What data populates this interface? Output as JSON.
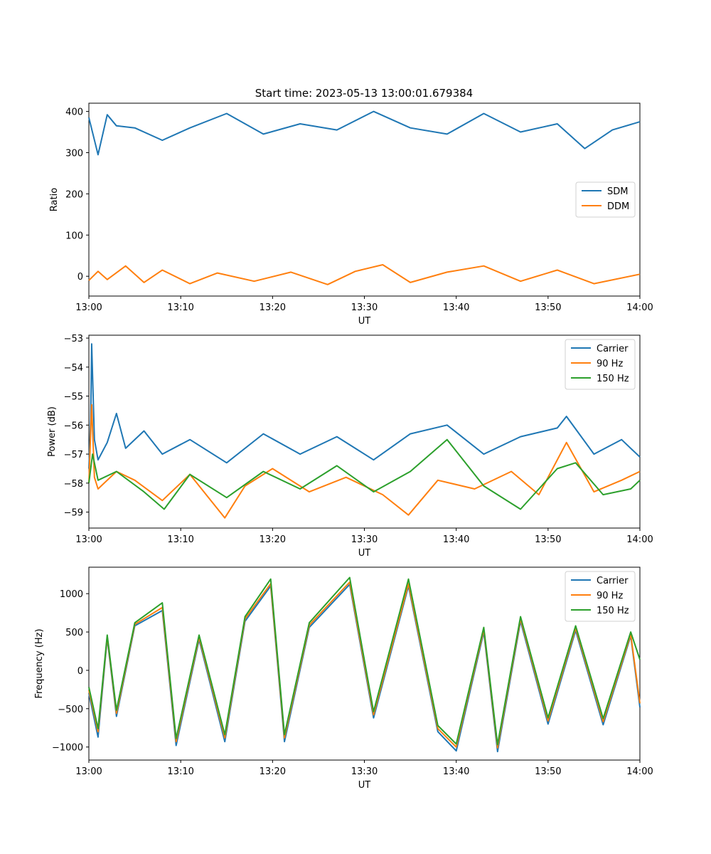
{
  "figure": {
    "title": "Start time: 2023-05-13 13:00:01.679384"
  },
  "chart_data": [
    {
      "type": "line",
      "xlabel": "UT",
      "ylabel": "Ratio",
      "xlim": [
        "13:00",
        "14:00"
      ],
      "ylim": [
        -48,
        420
      ],
      "x_ticks": [
        "13:00",
        "13:10",
        "13:20",
        "13:30",
        "13:40",
        "13:50",
        "14:00"
      ],
      "y_ticks": [
        0,
        100,
        200,
        300,
        400
      ],
      "y_tick_labels": [
        "0",
        "100",
        "200",
        "300",
        "400"
      ],
      "grid": false,
      "legend_placement": "center-right",
      "series": [
        {
          "name": "SDM",
          "color": "#1f77b4",
          "x": [
            "13:00",
            "13:01",
            "13:02",
            "13:03",
            "13:05",
            "13:08",
            "13:11",
            "13:15",
            "13:19",
            "13:23",
            "13:27",
            "13:31",
            "13:35",
            "13:39",
            "13:43",
            "13:47",
            "13:51",
            "13:54",
            "13:57",
            "14:00"
          ],
          "values": [
            385,
            295,
            392,
            365,
            360,
            330,
            360,
            395,
            345,
            370,
            355,
            400,
            360,
            345,
            395,
            350,
            370,
            310,
            355,
            375
          ]
        },
        {
          "name": "DDM",
          "color": "#ff7f0e",
          "x": [
            "13:00",
            "13:01",
            "13:02",
            "13:04",
            "13:06",
            "13:08",
            "13:11",
            "13:14",
            "13:18",
            "13:22",
            "13:26",
            "13:29",
            "13:32",
            "13:35",
            "13:39",
            "13:43",
            "13:47",
            "13:51",
            "13:55",
            "14:00"
          ],
          "values": [
            -10,
            12,
            -8,
            25,
            -15,
            15,
            -18,
            8,
            -12,
            10,
            -20,
            12,
            28,
            -15,
            10,
            25,
            -12,
            15,
            -18,
            5
          ]
        }
      ]
    },
    {
      "type": "line",
      "xlabel": "UT",
      "ylabel": "Power (dB)",
      "xlim": [
        "13:00",
        "14:00"
      ],
      "ylim": [
        -59.55,
        -52.9
      ],
      "x_ticks": [
        "13:00",
        "13:10",
        "13:20",
        "13:30",
        "13:40",
        "13:50",
        "14:00"
      ],
      "y_ticks": [
        -59,
        -58,
        -57,
        -56,
        -55,
        -54,
        -53
      ],
      "y_tick_labels": [
        "−59",
        "−58",
        "−57",
        "−56",
        "−55",
        "−54",
        "−53"
      ],
      "grid": false,
      "legend_placement": "top-right",
      "series": [
        {
          "name": "Carrier",
          "color": "#1f77b4",
          "x": [
            "13:00",
            "13:0.2",
            "13:0.3",
            "13:0.6",
            "13:1",
            "13:2",
            "13:3",
            "13:4",
            "13:6",
            "13:8",
            "13:11",
            "13:15",
            "13:19",
            "13:23",
            "13:27",
            "13:31",
            "13:35",
            "13:39",
            "13:43",
            "13:47",
            "13:51",
            "13:52",
            "13:55",
            "13:58",
            "14:00"
          ],
          "values": [
            -57.5,
            -55.8,
            -53.2,
            -56.5,
            -57.2,
            -56.6,
            -55.6,
            -56.8,
            -56.2,
            -57.0,
            -56.5,
            -57.3,
            -56.3,
            -57.0,
            -56.4,
            -57.2,
            -56.3,
            -56.0,
            -57.0,
            -56.4,
            -56.1,
            -55.7,
            -57.0,
            -56.5,
            -57.1
          ]
        },
        {
          "name": "90 Hz",
          "color": "#ff7f0e",
          "x": [
            "13:00",
            "13:0.3",
            "13:0.6",
            "13:1",
            "13:3",
            "13:5",
            "13:8",
            "13:11",
            "13:14.8",
            "13:17",
            "13:20",
            "13:24",
            "13:28",
            "13:32",
            "13:34.8",
            "13:38",
            "13:42",
            "13:46",
            "13:49",
            "13:52",
            "13:55",
            "13:58",
            "14:00"
          ],
          "values": [
            -58.0,
            -55.3,
            -57.8,
            -58.2,
            -57.6,
            -57.9,
            -58.6,
            -57.7,
            -59.2,
            -58.1,
            -57.5,
            -58.3,
            -57.8,
            -58.4,
            -59.1,
            -57.9,
            -58.2,
            -57.6,
            -58.4,
            -56.6,
            -58.3,
            -57.9,
            -57.6
          ]
        },
        {
          "name": "150 Hz",
          "color": "#2ca02c",
          "x": [
            "13:00",
            "13:0.4",
            "13:1",
            "13:3",
            "13:6",
            "13:8.2",
            "13:11",
            "13:15",
            "13:19",
            "13:23",
            "13:27",
            "13:31",
            "13:35",
            "13:39",
            "13:43",
            "13:47",
            "13:51",
            "13:53",
            "13:56",
            "13:59",
            "14:00"
          ],
          "values": [
            -58.0,
            -57.0,
            -57.9,
            -57.6,
            -58.3,
            -58.9,
            -57.7,
            -58.5,
            -57.6,
            -58.2,
            -57.4,
            -58.3,
            -57.6,
            -56.5,
            -58.1,
            -58.9,
            -57.5,
            -57.3,
            -58.4,
            -58.2,
            -57.9
          ]
        }
      ]
    },
    {
      "type": "line",
      "xlabel": "UT",
      "ylabel": "Frequency (Hz)",
      "xlim": [
        "13:00",
        "14:00"
      ],
      "ylim": [
        -1170,
        1345
      ],
      "x_ticks": [
        "13:00",
        "13:10",
        "13:20",
        "13:30",
        "13:40",
        "13:50",
        "14:00"
      ],
      "y_ticks": [
        -1000,
        -500,
        0,
        500,
        1000
      ],
      "y_tick_labels": [
        "−1000",
        "−500",
        "0",
        "500",
        "1000"
      ],
      "grid": false,
      "legend_placement": "top-right",
      "series": [
        {
          "name": "Carrier",
          "color": "#1f77b4",
          "x": [
            "13:00",
            "13:1",
            "13:2",
            "13:3",
            "13:5",
            "13:8",
            "13:9.5",
            "13:12",
            "13:14.8",
            "13:17",
            "13:19.8",
            "13:21.3",
            "13:24",
            "13:28.4",
            "13:31",
            "13:34.8",
            "13:38",
            "13:40",
            "13:43",
            "13:44.5",
            "13:47",
            "13:50",
            "13:53",
            "13:56",
            "13:59",
            "14:00"
          ],
          "values": [
            -300,
            -870,
            420,
            -600,
            580,
            780,
            -980,
            400,
            -930,
            640,
            1100,
            -930,
            560,
            1120,
            -620,
            1100,
            -800,
            -1050,
            500,
            -1060,
            640,
            -700,
            520,
            -710,
            450,
            -480
          ]
        },
        {
          "name": "90 Hz",
          "color": "#ff7f0e",
          "x": [
            "13:00",
            "13:1",
            "13:2",
            "13:3",
            "13:5",
            "13:8",
            "13:9.5",
            "13:12",
            "13:14.8",
            "13:17",
            "13:19.8",
            "13:21.3",
            "13:24",
            "13:28.4",
            "13:31",
            "13:34.8",
            "13:38",
            "13:40",
            "13:43",
            "13:44.5",
            "13:47",
            "13:50",
            "13:53",
            "13:56",
            "13:59",
            "14:00"
          ],
          "values": [
            -260,
            -800,
            440,
            -560,
            600,
            820,
            -930,
            430,
            -880,
            670,
            1130,
            -880,
            590,
            1150,
            -580,
            1130,
            -760,
            -1000,
            530,
            -1010,
            670,
            -660,
            550,
            -670,
            470,
            -430
          ]
        },
        {
          "name": "150 Hz",
          "color": "#2ca02c",
          "x": [
            "13:00",
            "13:1",
            "13:2",
            "13:3",
            "13:5",
            "13:8",
            "13:9.5",
            "13:12",
            "13:14.8",
            "13:17",
            "13:19.8",
            "13:21.3",
            "13:24",
            "13:28.4",
            "13:31",
            "13:34.8",
            "13:38",
            "13:40",
            "13:43",
            "13:44.5",
            "13:47",
            "13:50",
            "13:53",
            "13:56",
            "13:59",
            "14:00"
          ],
          "values": [
            -220,
            -760,
            460,
            -520,
            620,
            880,
            -890,
            460,
            -840,
            700,
            1190,
            -840,
            620,
            1210,
            -540,
            1190,
            -720,
            -960,
            560,
            -970,
            700,
            -620,
            580,
            -630,
            500,
            140
          ]
        }
      ]
    }
  ]
}
